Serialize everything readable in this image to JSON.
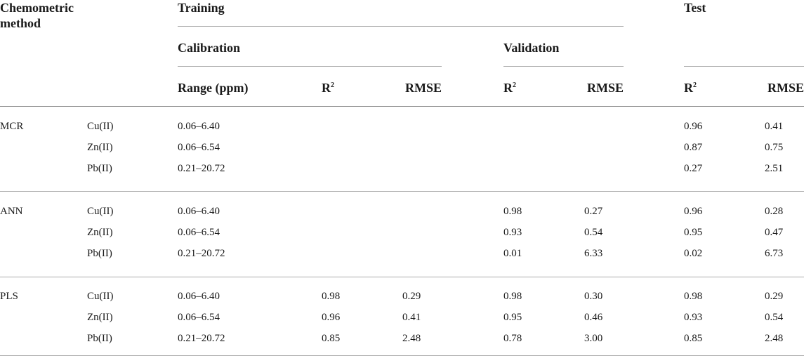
{
  "header": {
    "method_label": "Chemometric method",
    "training": "Training",
    "test": "Test",
    "calibration": "Calibration",
    "validation": "Validation",
    "range": "Range (ppm)",
    "r2_base": "R",
    "r2_sup": "2",
    "rmse": "RMSE"
  },
  "groups": [
    {
      "method": "MCR",
      "rows": [
        {
          "analyte": "Cu(II)",
          "range": "0.06–6.40",
          "cal_r2": "",
          "cal_rmse": "",
          "val_r2": "",
          "val_rmse": "",
          "test_r2": "0.96",
          "test_rmse": "0.41"
        },
        {
          "analyte": "Zn(II)",
          "range": "0.06–6.54",
          "cal_r2": "",
          "cal_rmse": "",
          "val_r2": "",
          "val_rmse": "",
          "test_r2": "0.87",
          "test_rmse": "0.75"
        },
        {
          "analyte": "Pb(II)",
          "range": "0.21–20.72",
          "cal_r2": "",
          "cal_rmse": "",
          "val_r2": "",
          "val_rmse": "",
          "test_r2": "0.27",
          "test_rmse": "2.51"
        }
      ]
    },
    {
      "method": "ANN",
      "rows": [
        {
          "analyte": "Cu(II)",
          "range": "0.06–6.40",
          "cal_r2": "",
          "cal_rmse": "",
          "val_r2": "0.98",
          "val_rmse": "0.27",
          "test_r2": "0.96",
          "test_rmse": "0.28"
        },
        {
          "analyte": "Zn(II)",
          "range": "0.06–6.54",
          "cal_r2": "",
          "cal_rmse": "",
          "val_r2": "0.93",
          "val_rmse": "0.54",
          "test_r2": "0.95",
          "test_rmse": "0.47"
        },
        {
          "analyte": "Pb(II)",
          "range": "0.21–20.72",
          "cal_r2": "",
          "cal_rmse": "",
          "val_r2": "0.01",
          "val_rmse": "6.33",
          "test_r2": "0.02",
          "test_rmse": "6.73"
        }
      ]
    },
    {
      "method": "PLS",
      "rows": [
        {
          "analyte": "Cu(II)",
          "range": "0.06–6.40",
          "cal_r2": "0.98",
          "cal_rmse": "0.29",
          "val_r2": "0.98",
          "val_rmse": "0.30",
          "test_r2": "0.98",
          "test_rmse": "0.29"
        },
        {
          "analyte": "Zn(II)",
          "range": "0.06–6.54",
          "cal_r2": "0.96",
          "cal_rmse": "0.41",
          "val_r2": "0.95",
          "val_rmse": "0.46",
          "test_r2": "0.93",
          "test_rmse": "0.54"
        },
        {
          "analyte": "Pb(II)",
          "range": "0.21–20.72",
          "cal_r2": "0.85",
          "cal_rmse": "2.48",
          "val_r2": "0.78",
          "val_rmse": "3.00",
          "test_r2": "0.85",
          "test_rmse": "2.48"
        }
      ]
    }
  ]
}
